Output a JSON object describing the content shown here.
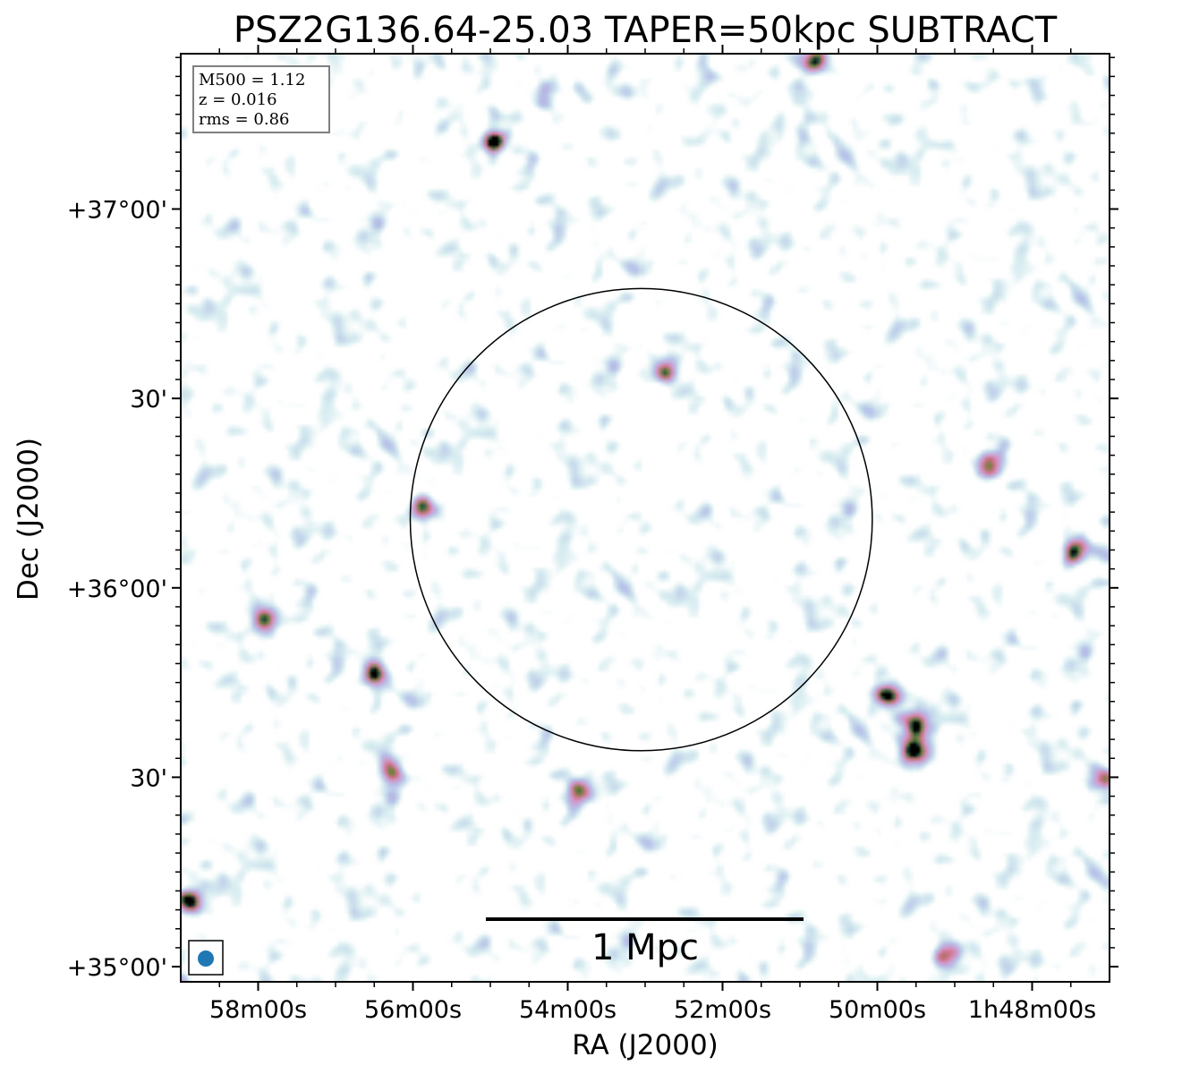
{
  "chart_data": {
    "type": "heatmap",
    "title": "PSZ2G136.64-25.03 TAPER=50kpc SUBTRACT",
    "xlabel": "RA (J2000)",
    "ylabel": "Dec (J2000)",
    "x_ticks": [
      "58m00s",
      "56m00s",
      "54m00s",
      "52m00s",
      "50m00s",
      "1h48m00s"
    ],
    "x_tick_values_min": [
      58,
      56,
      54,
      52,
      50,
      48
    ],
    "y_ticks": [
      "+37°00'",
      "30'",
      "+36°00'",
      "30'",
      "+35°00'"
    ],
    "y_tick_values_deg": [
      37.0,
      36.5,
      36.0,
      35.5,
      35.0
    ],
    "xlim_ra_min": [
      59.0,
      47.0
    ],
    "ylim_dec_deg": [
      34.96,
      37.41
    ],
    "info": {
      "m500": "M500 = 1.12",
      "z": "z = 0.016",
      "rms": "rms = 0.86"
    },
    "scalebar_label": "1 Mpc",
    "r500_circle": {
      "ra_min": 53.05,
      "dec_deg": 36.18,
      "radius_deg": 0.61
    },
    "beam": "circular",
    "colormap": "cubehelix_r",
    "bright_sources": [
      {
        "ra_min": 54.98,
        "dec_deg": 37.18,
        "level": 1.0
      },
      {
        "ra_min": 57.92,
        "dec_deg": 35.92,
        "level": 1.0
      },
      {
        "ra_min": 56.52,
        "dec_deg": 35.78,
        "level": 0.92
      },
      {
        "ra_min": 49.88,
        "dec_deg": 35.72,
        "level": 1.0
      },
      {
        "ra_min": 49.52,
        "dec_deg": 35.65,
        "level": 0.95
      },
      {
        "ra_min": 49.55,
        "dec_deg": 35.57,
        "level": 1.0
      },
      {
        "ra_min": 47.45,
        "dec_deg": 36.1,
        "level": 0.85
      },
      {
        "ra_min": 58.9,
        "dec_deg": 35.18,
        "level": 0.95
      },
      {
        "ra_min": 49.1,
        "dec_deg": 35.03,
        "level": 0.85
      },
      {
        "ra_min": 52.75,
        "dec_deg": 36.58,
        "level": 0.75
      },
      {
        "ra_min": 55.9,
        "dec_deg": 36.22,
        "level": 0.75
      },
      {
        "ra_min": 50.82,
        "dec_deg": 37.39,
        "level": 0.7
      },
      {
        "ra_min": 56.3,
        "dec_deg": 35.52,
        "level": 0.72
      },
      {
        "ra_min": 48.6,
        "dec_deg": 36.33,
        "level": 0.7
      },
      {
        "ra_min": 47.1,
        "dec_deg": 35.5,
        "level": 0.7
      },
      {
        "ra_min": 53.85,
        "dec_deg": 35.47,
        "level": 0.62
      }
    ]
  }
}
